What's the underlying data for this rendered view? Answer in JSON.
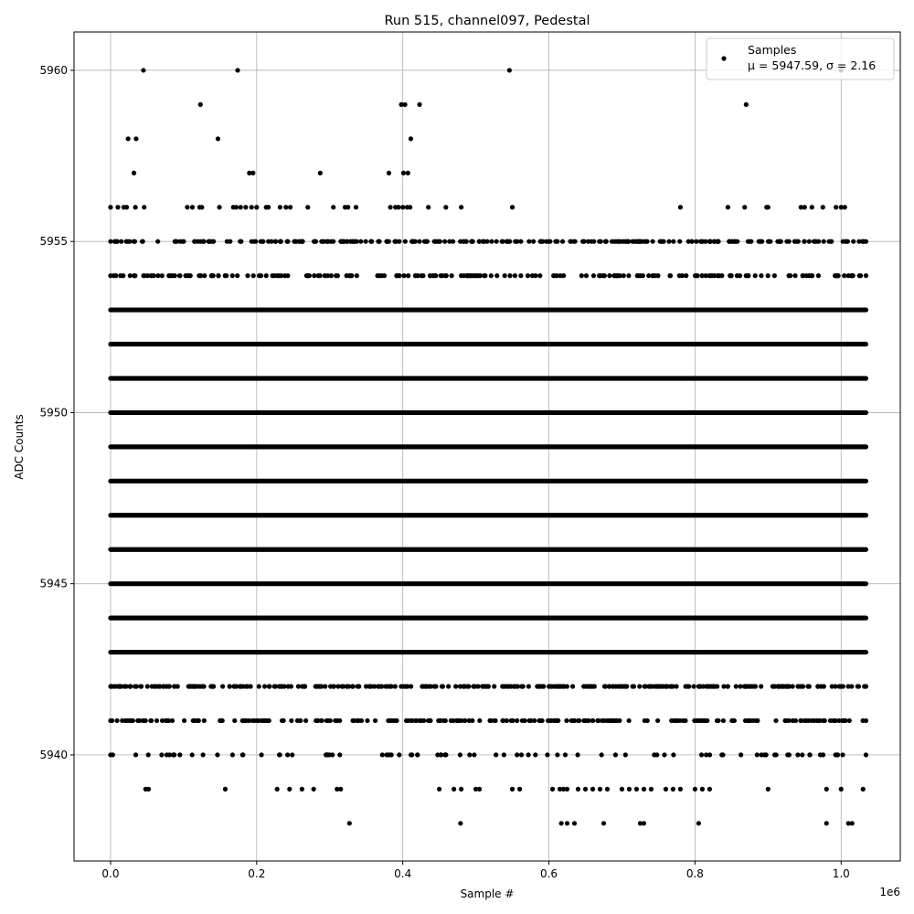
{
  "chart_data": {
    "type": "scatter",
    "title": "Run 515, channel097, Pedestal",
    "xlabel": "Sample #",
    "ylabel": "ADC Counts",
    "x_offset_label": "1e6",
    "xlim": [
      -0.05,
      1.081
    ],
    "ylim": [
      5936.9,
      5961.12
    ],
    "x_unit_scale": 1000000,
    "x_ticks": [
      0.0,
      0.2,
      0.4,
      0.6,
      0.8,
      1.0
    ],
    "x_tick_labels": [
      "0.0",
      "0.2",
      "0.4",
      "0.6",
      "0.8",
      "1.0"
    ],
    "y_ticks": [
      5940,
      5945,
      5950,
      5955,
      5960
    ],
    "y_tick_labels": [
      "5940",
      "5945",
      "5950",
      "5955",
      "5960"
    ],
    "grid": true,
    "legend": {
      "placement": "top-right",
      "entries": [
        "Samples",
        "μ = 5947.59, σ = 2.16"
      ]
    },
    "marker_color": "#000000",
    "sample_range": [
      0.0,
      1.034
    ],
    "dense_levels": [
      {
        "y": 5955,
        "fill_fraction": 0.7
      },
      {
        "y": 5954,
        "fill_fraction": 0.5
      },
      {
        "y": 5953,
        "fill_fraction": 0.97
      },
      {
        "y": 5952,
        "fill_fraction": 1.0
      },
      {
        "y": 5951,
        "fill_fraction": 1.0
      },
      {
        "y": 5950,
        "fill_fraction": 1.0
      },
      {
        "y": 5949,
        "fill_fraction": 1.0
      },
      {
        "y": 5948,
        "fill_fraction": 1.0
      },
      {
        "y": 5947,
        "fill_fraction": 1.0
      },
      {
        "y": 5946,
        "fill_fraction": 1.0
      },
      {
        "y": 5945,
        "fill_fraction": 1.0
      },
      {
        "y": 5944,
        "fill_fraction": 1.0
      },
      {
        "y": 5943,
        "fill_fraction": 1.0
      },
      {
        "y": 5942,
        "fill_fraction": 0.8
      },
      {
        "y": 5941,
        "fill_fraction": 0.6
      },
      {
        "y": 5940,
        "fill_fraction": 0.22
      }
    ],
    "outliers": [
      {
        "y": 5960,
        "x": [
          0.045,
          0.174,
          0.546,
          1.0
        ]
      },
      {
        "y": 5959,
        "x": [
          0.123,
          0.398,
          0.403,
          0.423,
          0.87
        ]
      },
      {
        "y": 5958,
        "x": [
          0.024,
          0.035,
          0.147,
          0.411
        ]
      },
      {
        "y": 5957,
        "x": [
          0.032,
          0.19,
          0.195,
          0.287,
          0.381,
          0.401,
          0.407
        ]
      },
      {
        "y": 5956,
        "x": [
          0.0,
          0.01,
          0.018,
          0.022,
          0.034,
          0.046,
          0.105,
          0.112,
          0.122,
          0.125,
          0.149,
          0.168,
          0.172,
          0.178,
          0.185,
          0.193,
          0.2,
          0.213,
          0.216,
          0.232,
          0.24,
          0.246,
          0.27,
          0.305,
          0.321,
          0.325,
          0.336,
          0.383,
          0.39,
          0.394,
          0.4,
          0.406,
          0.41,
          0.435,
          0.459,
          0.48,
          0.55,
          0.78,
          0.845,
          0.868,
          0.898,
          0.9,
          0.945,
          0.95,
          0.96,
          0.975,
          0.993,
          1.0,
          1.005
        ]
      },
      {
        "y": 5939,
        "x": [
          0.048,
          0.052,
          0.157,
          0.228,
          0.245,
          0.262,
          0.278,
          0.31,
          0.315,
          0.45,
          0.47,
          0.48,
          0.5,
          0.505,
          0.55,
          0.56,
          0.605,
          0.615,
          0.62,
          0.625,
          0.64,
          0.65,
          0.66,
          0.67,
          0.68,
          0.7,
          0.71,
          0.72,
          0.73,
          0.74,
          0.76,
          0.77,
          0.78,
          0.8,
          0.81,
          0.82,
          0.9,
          0.98,
          1.0,
          1.03
        ]
      },
      {
        "y": 5938,
        "x": [
          0.327,
          0.479,
          0.617,
          0.625,
          0.635,
          0.675,
          0.725,
          0.73,
          0.805,
          0.98,
          1.01,
          1.015
        ]
      }
    ]
  }
}
